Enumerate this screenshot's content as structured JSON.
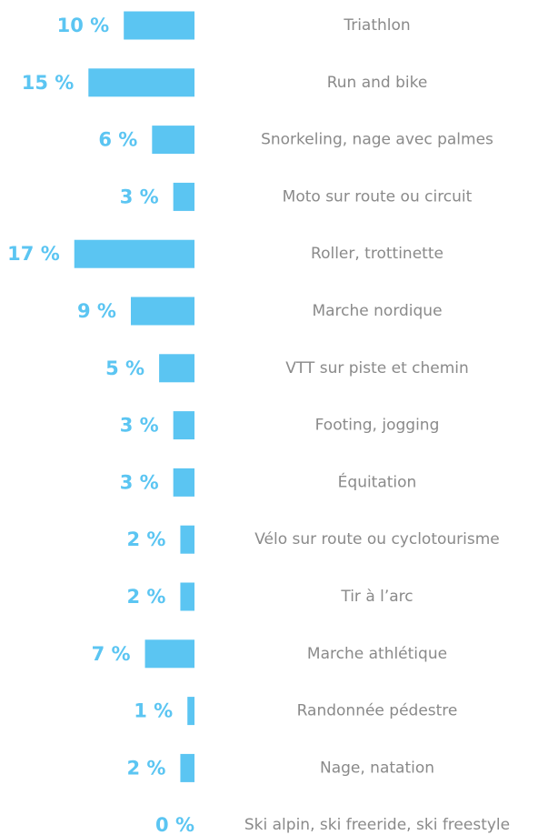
{
  "chart_data": {
    "type": "bar",
    "color": "#5bc5f2",
    "categories": [
      "Triathlon",
      "Run and bike",
      "Snorkeling, nage avec palmes",
      "Moto sur route ou circuit",
      "Roller, trottinette",
      "Marche nordique",
      "VTT sur piste et chemin",
      "Footing, jogging",
      "Équitation",
      "Vélo sur route ou cyclotourisme",
      "Tir à l’arc",
      "Marche athlétique",
      "Randonnée pédestre",
      "Nage, natation",
      "Ski alpin, ski freeride, ski freestyle"
    ],
    "values": [
      10,
      15,
      6,
      3,
      17,
      9,
      5,
      3,
      3,
      2,
      2,
      7,
      1,
      2,
      0
    ],
    "value_labels": [
      "10 %",
      "15 %",
      "6 %",
      "3 %",
      "17 %",
      "9 %",
      "5 %",
      "3 %",
      "3 %",
      "2 %",
      "2 %",
      "7 %",
      "1 %",
      "2 %",
      "0 %"
    ]
  }
}
